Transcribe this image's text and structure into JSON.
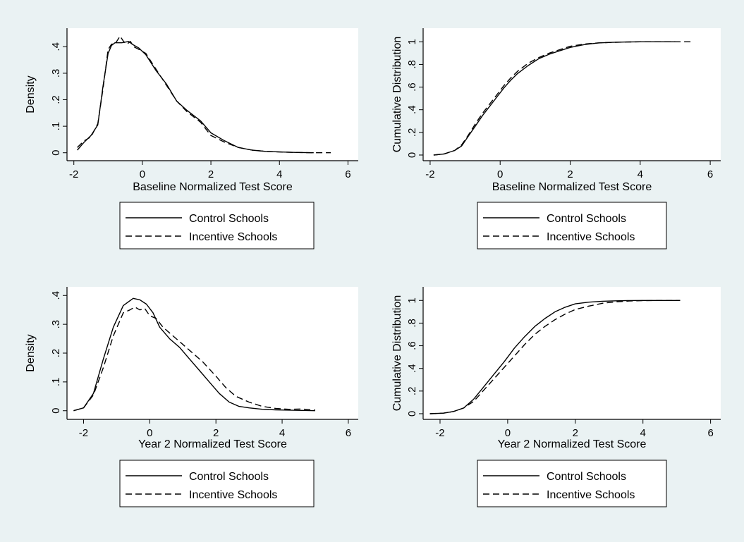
{
  "legend": {
    "solid_label": "Control Schools",
    "dashed_label": "Incentive Schools"
  },
  "colors": {
    "background": "#eaf2f3",
    "plot_background": "#ffffff",
    "line": "#000000"
  },
  "chart_data": [
    {
      "type": "line",
      "panel": "top-left",
      "xlabel": "Baseline Normalized Test Score",
      "ylabel": "Density",
      "xlim": [
        -2.2,
        6.3
      ],
      "ylim": [
        -0.03,
        0.47
      ],
      "xticks": [
        -2,
        0,
        2,
        4,
        6
      ],
      "xtick_labels": [
        "-2",
        "0",
        "2",
        "4",
        "6"
      ],
      "yticks": [
        0,
        0.1,
        0.2,
        0.3,
        0.4
      ],
      "ytick_labels": [
        "0",
        ".1",
        ".2",
        ".3",
        ".4"
      ],
      "grid": false,
      "legend_position": "bottom",
      "series": [
        {
          "name": "Control Schools",
          "style": "solid",
          "x": [
            -1.9,
            -1.7,
            -1.5,
            -1.3,
            -1.15,
            -1.0,
            -0.9,
            -0.8,
            -0.6,
            -0.4,
            -0.3,
            -0.1,
            0.1,
            0.4,
            0.7,
            1.0,
            1.3,
            1.7,
            2.0,
            2.4,
            2.8,
            3.2,
            3.6,
            4.0,
            4.5,
            5.0
          ],
          "y": [
            0.01,
            0.04,
            0.065,
            0.105,
            0.25,
            0.375,
            0.405,
            0.415,
            0.415,
            0.42,
            0.41,
            0.395,
            0.37,
            0.31,
            0.26,
            0.195,
            0.16,
            0.12,
            0.075,
            0.045,
            0.02,
            0.01,
            0.005,
            0.003,
            0.001,
            0.0
          ]
        },
        {
          "name": "Incentive Schools",
          "style": "dashed",
          "x": [
            -1.9,
            -1.7,
            -1.5,
            -1.3,
            -1.15,
            -1.0,
            -0.9,
            -0.8,
            -0.65,
            -0.55,
            -0.45,
            -0.35,
            -0.25,
            -0.1,
            0.1,
            0.4,
            0.7,
            1.0,
            1.3,
            1.7,
            2.0,
            2.4,
            2.8,
            3.2,
            3.6,
            4.0,
            4.5,
            5.0,
            5.5
          ],
          "y": [
            0.02,
            0.045,
            0.06,
            0.11,
            0.24,
            0.39,
            0.41,
            0.41,
            0.44,
            0.42,
            0.41,
            0.42,
            0.4,
            0.39,
            0.375,
            0.315,
            0.255,
            0.195,
            0.155,
            0.115,
            0.065,
            0.04,
            0.02,
            0.01,
            0.005,
            0.003,
            0.001,
            0.0,
            0.0
          ]
        }
      ]
    },
    {
      "type": "line",
      "panel": "top-right",
      "xlabel": "Baseline Normalized Test Score",
      "ylabel": "Cumulative Distribution",
      "xlim": [
        -2.2,
        6.3
      ],
      "ylim": [
        -0.05,
        1.12
      ],
      "xticks": [
        -2,
        0,
        2,
        4,
        6
      ],
      "xtick_labels": [
        "-2",
        "0",
        "2",
        "4",
        "6"
      ],
      "yticks": [
        0,
        0.2,
        0.4,
        0.6,
        0.8,
        1
      ],
      "ytick_labels": [
        "0",
        ".2",
        ".4",
        ".6",
        ".8",
        "1"
      ],
      "grid": false,
      "legend_position": "bottom",
      "series": [
        {
          "name": "Control Schools",
          "style": "solid",
          "x": [
            -1.9,
            -1.6,
            -1.3,
            -1.1,
            -0.9,
            -0.7,
            -0.5,
            -0.3,
            -0.1,
            0.1,
            0.3,
            0.5,
            0.8,
            1.1,
            1.4,
            1.7,
            2.0,
            2.4,
            2.8,
            3.2,
            3.6,
            4.0,
            4.5,
            5.0
          ],
          "y": [
            0.0,
            0.01,
            0.04,
            0.08,
            0.17,
            0.26,
            0.35,
            0.43,
            0.51,
            0.59,
            0.66,
            0.72,
            0.79,
            0.85,
            0.89,
            0.92,
            0.95,
            0.975,
            0.99,
            0.995,
            0.998,
            1.0,
            1.0,
            1.0
          ]
        },
        {
          "name": "Incentive Schools",
          "style": "dashed",
          "x": [
            -1.9,
            -1.6,
            -1.3,
            -1.1,
            -0.9,
            -0.7,
            -0.5,
            -0.3,
            -0.1,
            0.1,
            0.3,
            0.5,
            0.8,
            1.1,
            1.4,
            1.7,
            2.0,
            2.4,
            2.8,
            3.2,
            3.6,
            4.0,
            4.5,
            5.0,
            5.5
          ],
          "y": [
            0.0,
            0.01,
            0.04,
            0.09,
            0.18,
            0.28,
            0.37,
            0.45,
            0.53,
            0.61,
            0.68,
            0.74,
            0.81,
            0.86,
            0.9,
            0.93,
            0.96,
            0.98,
            0.99,
            0.995,
            0.998,
            1.0,
            1.0,
            1.0,
            1.0
          ]
        }
      ]
    },
    {
      "type": "line",
      "panel": "bottom-left",
      "xlabel": "Year 2 Normalized Test Score",
      "ylabel": "Density",
      "xlim": [
        -2.5,
        6.3
      ],
      "ylim": [
        -0.03,
        0.43
      ],
      "xticks": [
        -2,
        0,
        2,
        4,
        6
      ],
      "xtick_labels": [
        "-2",
        "0",
        "2",
        "4",
        "6"
      ],
      "yticks": [
        0,
        0.1,
        0.2,
        0.3,
        0.4
      ],
      "ytick_labels": [
        "0",
        ".1",
        ".2",
        ".3",
        ".4"
      ],
      "grid": false,
      "legend_position": "bottom",
      "series": [
        {
          "name": "Control Schools",
          "style": "solid",
          "x": [
            -2.3,
            -2.0,
            -1.7,
            -1.4,
            -1.1,
            -0.8,
            -0.5,
            -0.3,
            -0.1,
            0.1,
            0.3,
            0.6,
            0.9,
            1.2,
            1.5,
            1.8,
            2.1,
            2.4,
            2.7,
            3.0,
            3.4,
            3.8,
            4.2,
            4.6,
            5.0
          ],
          "y": [
            0.0,
            0.01,
            0.06,
            0.18,
            0.29,
            0.365,
            0.39,
            0.385,
            0.37,
            0.34,
            0.29,
            0.25,
            0.22,
            0.18,
            0.14,
            0.1,
            0.06,
            0.03,
            0.015,
            0.01,
            0.005,
            0.003,
            0.002,
            0.001,
            0.0
          ]
        },
        {
          "name": "Incentive Schools",
          "style": "dashed",
          "x": [
            -2.3,
            -2.0,
            -1.7,
            -1.4,
            -1.1,
            -0.8,
            -0.6,
            -0.45,
            -0.3,
            -0.15,
            0.0,
            0.2,
            0.4,
            0.7,
            1.0,
            1.3,
            1.6,
            2.0,
            2.3,
            2.6,
            3.0,
            3.4,
            3.8,
            4.2,
            4.6,
            5.0
          ],
          "y": [
            0.0,
            0.01,
            0.055,
            0.15,
            0.26,
            0.34,
            0.35,
            0.36,
            0.35,
            0.355,
            0.33,
            0.32,
            0.29,
            0.26,
            0.23,
            0.2,
            0.17,
            0.12,
            0.08,
            0.05,
            0.03,
            0.015,
            0.008,
            0.005,
            0.006,
            0.002
          ]
        }
      ]
    },
    {
      "type": "line",
      "panel": "bottom-right",
      "xlabel": "Year 2 Normalized Test Score",
      "ylabel": "Cumulative Distribution",
      "xlim": [
        -2.5,
        6.3
      ],
      "ylim": [
        -0.05,
        1.12
      ],
      "xticks": [
        -2,
        0,
        2,
        4,
        6
      ],
      "xtick_labels": [
        "-2",
        "0",
        "2",
        "4",
        "6"
      ],
      "yticks": [
        0,
        0.2,
        0.4,
        0.6,
        0.8,
        1
      ],
      "ytick_labels": [
        "0",
        ".2",
        ".4",
        ".6",
        ".8",
        "1"
      ],
      "grid": false,
      "legend_position": "bottom",
      "series": [
        {
          "name": "Control Schools",
          "style": "solid",
          "x": [
            -2.3,
            -1.9,
            -1.6,
            -1.3,
            -1.0,
            -0.7,
            -0.4,
            -0.1,
            0.2,
            0.5,
            0.8,
            1.1,
            1.4,
            1.7,
            2.0,
            2.4,
            2.8,
            3.2,
            3.6,
            4.0,
            4.5,
            5.1
          ],
          "y": [
            0.0,
            0.005,
            0.02,
            0.05,
            0.13,
            0.24,
            0.35,
            0.46,
            0.58,
            0.68,
            0.77,
            0.84,
            0.9,
            0.94,
            0.97,
            0.985,
            0.993,
            0.997,
            0.999,
            1.0,
            1.0,
            1.0
          ]
        },
        {
          "name": "Incentive Schools",
          "style": "dashed",
          "x": [
            -2.3,
            -1.9,
            -1.6,
            -1.3,
            -1.0,
            -0.7,
            -0.4,
            -0.1,
            0.2,
            0.5,
            0.8,
            1.1,
            1.4,
            1.7,
            2.0,
            2.4,
            2.8,
            3.2,
            3.6,
            4.0,
            4.5,
            5.1
          ],
          "y": [
            0.0,
            0.005,
            0.02,
            0.05,
            0.11,
            0.21,
            0.31,
            0.41,
            0.51,
            0.61,
            0.7,
            0.77,
            0.83,
            0.88,
            0.92,
            0.95,
            0.975,
            0.988,
            0.995,
            0.998,
            1.0,
            1.0
          ]
        }
      ]
    }
  ]
}
